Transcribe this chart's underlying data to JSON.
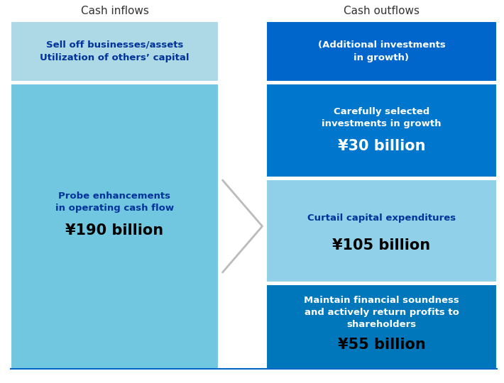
{
  "title_left": "Cash inflows",
  "title_right": "Cash outflows",
  "left_top_bg": "#ADD8E6",
  "left_top_text": "Sell off businesses/assets\nUtilization of others’ capital",
  "left_top_text_color": "#003399",
  "left_main_bg": "#72C7E0",
  "left_main_label": "Probe enhancements\nin operating cash flow",
  "left_main_value": "¥190 billion",
  "left_main_label_color": "#003399",
  "left_main_value_color": "#000000",
  "right_top_bg": "#0066CC",
  "right_top_text": "(Additional investments\nin growth)",
  "right_top_text_color": "#FFFFFF",
  "right_mid1_bg": "#0077CC",
  "right_mid1_label": "Carefully selected\ninvestments in growth",
  "right_mid1_value": "¥30 billion",
  "right_mid1_label_color": "#FFFFFF",
  "right_mid1_value_color": "#FFFFFF",
  "right_mid2_bg": "#90D0E8",
  "right_mid2_label": "Curtail capital expenditures",
  "right_mid2_value": "¥105 billion",
  "right_mid2_label_color": "#003399",
  "right_mid2_value_color": "#000000",
  "right_bot_bg": "#0077BB",
  "right_bot_label": "Maintain financial soundness\nand actively return profits to\nshareholders",
  "right_bot_value": "¥55 billion",
  "right_bot_label_color": "#FFFFFF",
  "right_bot_value_color": "#000000",
  "arrow_color": "#BBBBBB",
  "bg_color": "#FFFFFF",
  "title_color": "#333333",
  "bottom_line_color": "#0066CC"
}
